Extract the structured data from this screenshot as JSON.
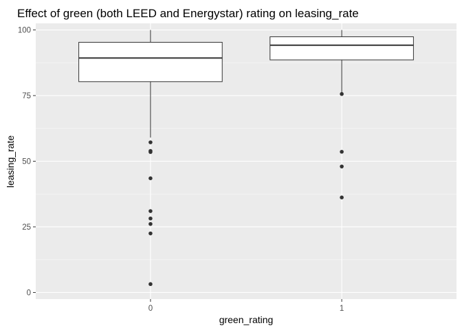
{
  "chart_data": {
    "type": "boxplot",
    "title": "Effect of green (both LEED and Energystar) rating on leasing_rate",
    "xlabel": "green_rating",
    "ylabel": "leasing_rate",
    "categories": [
      "0",
      "1"
    ],
    "ylim": [
      -2.5,
      102.5
    ],
    "yticks": [
      0,
      25,
      50,
      75,
      100
    ],
    "ytick_labels": [
      "0",
      "25",
      "50",
      "75",
      "100"
    ],
    "grid": true,
    "legend": "none",
    "boxes": [
      {
        "category": "0",
        "whisker_low": 59,
        "q1": 80.3,
        "median": 89.3,
        "q3": 95.3,
        "whisker_high": 100,
        "outliers": [
          57.2,
          53.9,
          53.5,
          43.5,
          31.0,
          28.2,
          26.1,
          22.5,
          3.2
        ]
      },
      {
        "category": "1",
        "whisker_low": 75.6,
        "q1": 88.6,
        "median": 94.2,
        "q3": 97.4,
        "whisker_high": 100,
        "outliers": [
          75.6,
          53.6,
          48.0,
          36.2
        ]
      }
    ],
    "colors": {
      "panel_background": "#ebebeb",
      "grid_major": "#ffffff",
      "grid_minor": "#f5f5f5",
      "box_fill": "#ffffff",
      "box_line": "#333333",
      "outlier": "#333333",
      "tick_label": "#4d4d4d"
    }
  }
}
